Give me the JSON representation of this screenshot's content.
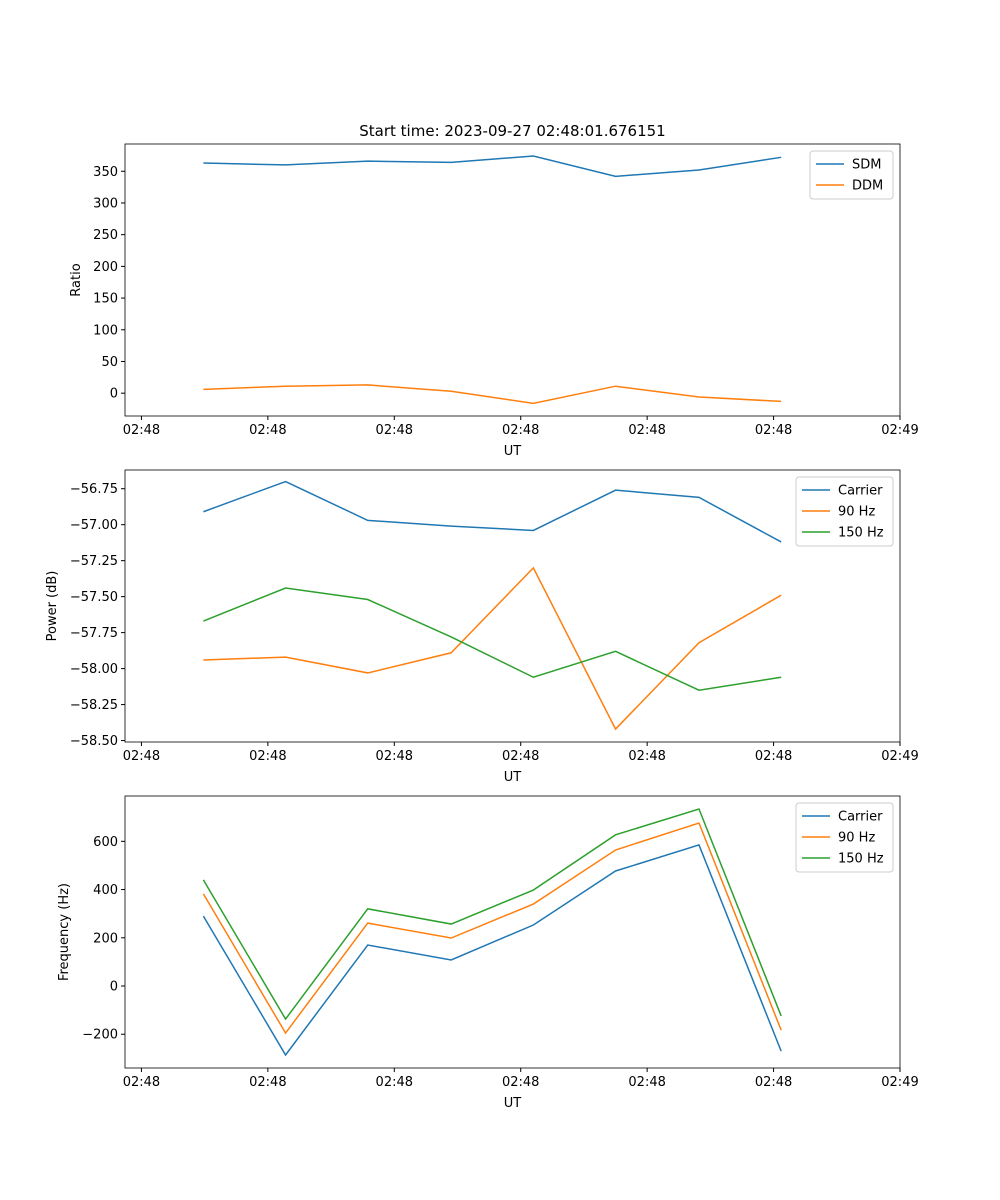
{
  "chart_data": [
    {
      "type": "line",
      "title": "Start time: 2023-09-27 02:48:01.676151",
      "xlabel": "UT",
      "ylabel": "Ratio",
      "x": [
        4.9,
        11.4,
        17.9,
        24.5,
        31.0,
        37.5,
        44.1,
        50.6
      ],
      "xlim": [
        -1.3,
        60
      ],
      "xticks": [
        0,
        10,
        20,
        30,
        40,
        50,
        60
      ],
      "xtick_labels": [
        "02:48",
        "02:48",
        "02:48",
        "02:48",
        "02:48",
        "02:48",
        "02:49"
      ],
      "ylim": [
        -36,
        393
      ],
      "yticks": [
        0,
        50,
        100,
        150,
        200,
        250,
        300,
        350
      ],
      "ytick_labels": [
        "0",
        "50",
        "100",
        "150",
        "200",
        "250",
        "300",
        "350"
      ],
      "legend": "top-right",
      "grid": false,
      "series": [
        {
          "name": "SDM",
          "color": "#1f77b4",
          "values": [
            363,
            360,
            366,
            364,
            374,
            342,
            352,
            372
          ]
        },
        {
          "name": "DDM",
          "color": "#ff7f0e",
          "values": [
            6,
            11,
            13,
            3,
            -16,
            11,
            -6,
            -13
          ]
        }
      ]
    },
    {
      "type": "line",
      "title": "",
      "xlabel": "UT",
      "ylabel": "Power (dB)",
      "x": [
        4.9,
        11.4,
        17.9,
        24.5,
        31.0,
        37.5,
        44.1,
        50.6
      ],
      "xlim": [
        -1.3,
        60
      ],
      "xticks": [
        0,
        10,
        20,
        30,
        40,
        50,
        60
      ],
      "xtick_labels": [
        "02:48",
        "02:48",
        "02:48",
        "02:48",
        "02:48",
        "02:48",
        "02:49"
      ],
      "ylim": [
        -58.51,
        -56.62
      ],
      "yticks": [
        -58.5,
        -58.25,
        -58,
        -57.75,
        -57.5,
        -57.25,
        -57,
        -56.75
      ],
      "ytick_labels": [
        "−58.50",
        "−58.25",
        "−58.00",
        "−57.75",
        "−57.50",
        "−57.25",
        "−57.00",
        "−56.75"
      ],
      "legend": "top-right",
      "grid": false,
      "series": [
        {
          "name": "Carrier",
          "color": "#1f77b4",
          "values": [
            -56.91,
            -56.7,
            -56.97,
            -57.01,
            -57.04,
            -56.76,
            -56.81,
            -57.12
          ]
        },
        {
          "name": "90 Hz",
          "color": "#ff7f0e",
          "values": [
            -57.94,
            -57.92,
            -58.03,
            -57.89,
            -57.3,
            -58.42,
            -57.82,
            -57.49
          ]
        },
        {
          "name": "150 Hz",
          "color": "#2ca02c",
          "values": [
            -57.67,
            -57.44,
            -57.52,
            -57.78,
            -58.06,
            -57.88,
            -58.15,
            -58.06
          ]
        }
      ]
    },
    {
      "type": "line",
      "title": "",
      "xlabel": "UT",
      "ylabel": "Frequency (Hz)",
      "x": [
        4.9,
        11.4,
        17.9,
        24.5,
        31.0,
        37.5,
        44.1,
        50.6
      ],
      "xlim": [
        -1.3,
        60
      ],
      "xticks": [
        0,
        10,
        20,
        30,
        40,
        50,
        60
      ],
      "xtick_labels": [
        "02:48",
        "02:48",
        "02:48",
        "02:48",
        "02:48",
        "02:48",
        "02:49"
      ],
      "ylim": [
        -340,
        788
      ],
      "yticks": [
        -200,
        0,
        200,
        400,
        600
      ],
      "ytick_labels": [
        "−200",
        "0",
        "200",
        "400",
        "600"
      ],
      "legend": "top-right",
      "grid": false,
      "series": [
        {
          "name": "Carrier",
          "color": "#1f77b4",
          "values": [
            290,
            -286,
            170,
            108,
            253,
            477,
            585,
            -270
          ]
        },
        {
          "name": "90 Hz",
          "color": "#ff7f0e",
          "values": [
            382,
            -195,
            261,
            199,
            340,
            564,
            676,
            -183
          ]
        },
        {
          "name": "150 Hz",
          "color": "#2ca02c",
          "values": [
            440,
            -137,
            320,
            257,
            398,
            627,
            734,
            -124
          ]
        }
      ]
    }
  ]
}
